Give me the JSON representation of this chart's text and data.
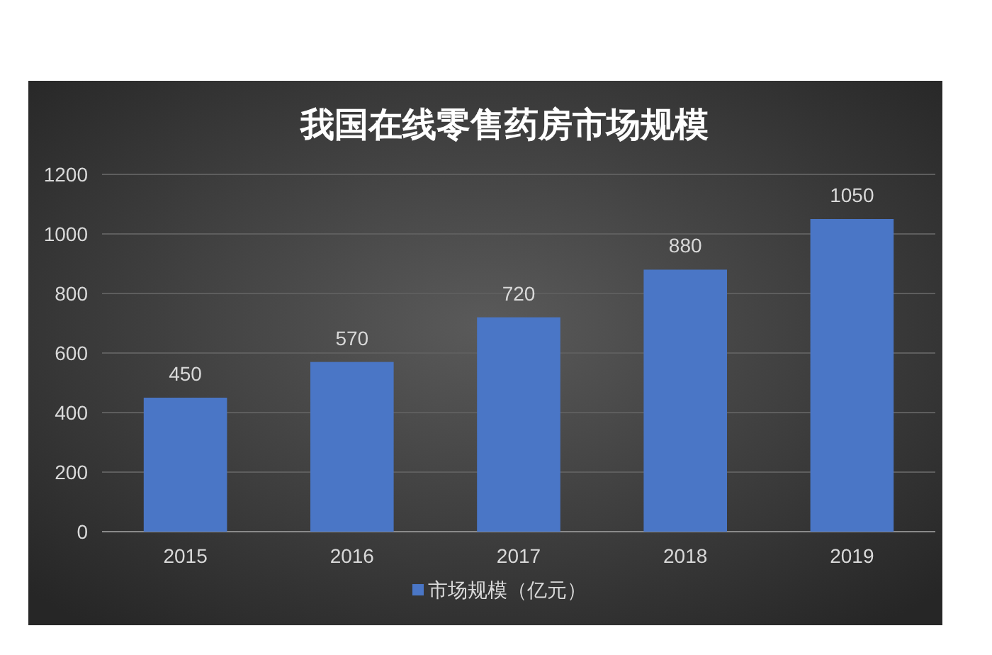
{
  "chart_data": {
    "type": "bar",
    "title": "我国在线零售药房市场规模",
    "categories": [
      "2015",
      "2016",
      "2017",
      "2018",
      "2019"
    ],
    "series": [
      {
        "name": "市场规模（亿元）",
        "color": "#4a76c6",
        "values": [
          450,
          570,
          720,
          880,
          1050
        ]
      }
    ],
    "ylim": [
      0,
      1200
    ],
    "yticks": [
      0,
      200,
      400,
      600,
      800,
      1000,
      1200
    ],
    "grid": "y",
    "legend": "bottom",
    "data_labels": true
  }
}
